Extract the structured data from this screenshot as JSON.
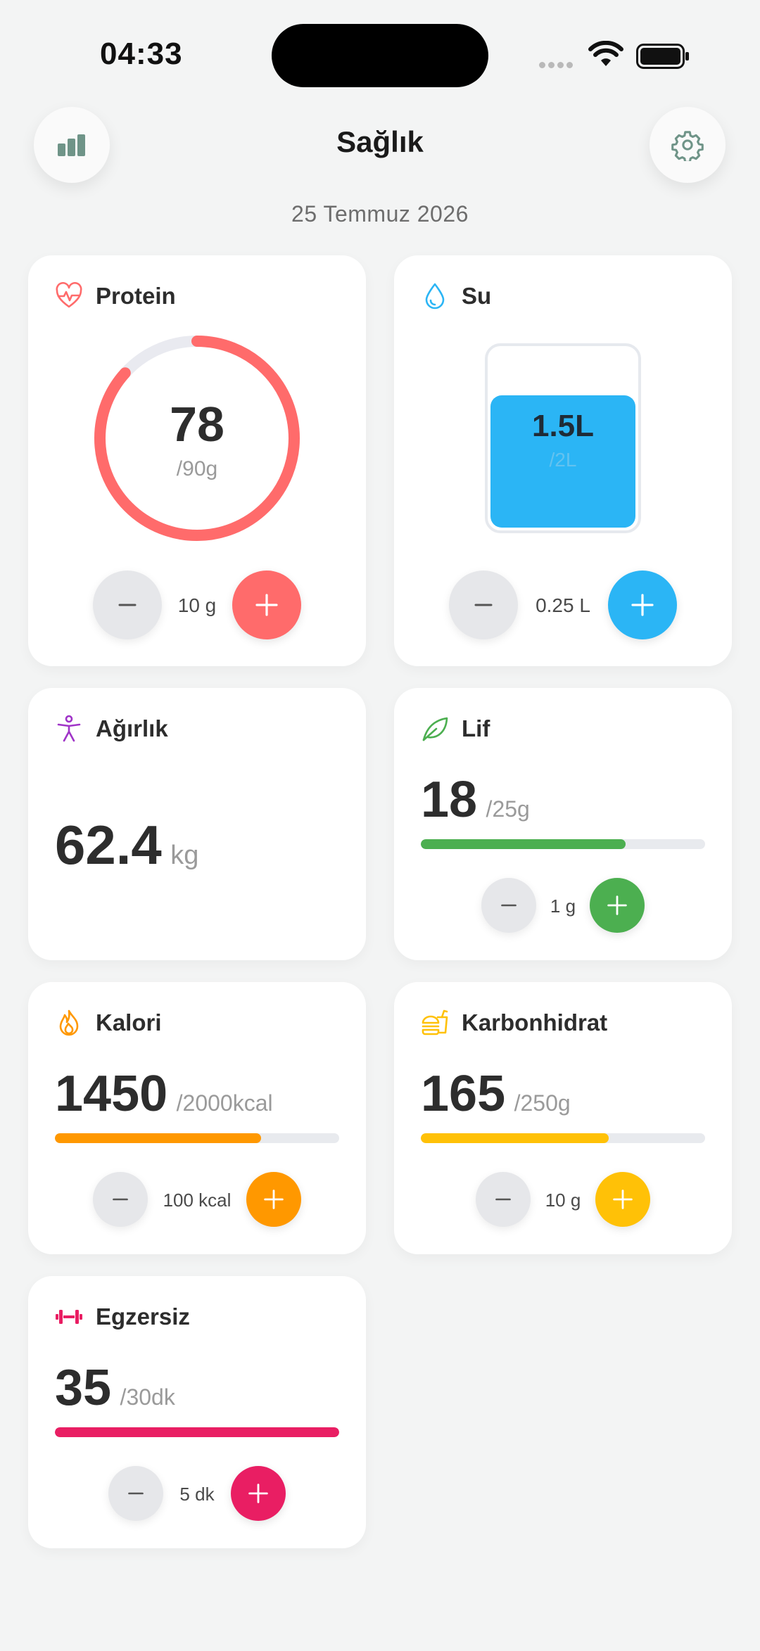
{
  "status": {
    "time": "04:33"
  },
  "header": {
    "title": "Sağlık",
    "date": "25 Temmuz 2026",
    "left_icon": "bar-chart-icon",
    "right_icon": "gear-icon"
  },
  "cards": {
    "protein": {
      "title": "Protein",
      "icon": "heart-pulse-icon",
      "value": "78",
      "goal": "/90g",
      "fraction": 0.867,
      "step": "10 g",
      "color": "#ff6b6b"
    },
    "water": {
      "title": "Su",
      "icon": "water-drop-icon",
      "value": "1.5L",
      "goal": "/2L",
      "fraction": 0.75,
      "step": "0.25 L",
      "color": "#2bb5f5"
    },
    "weight": {
      "title": "Ağırlık",
      "icon": "person-icon",
      "value": "62.4",
      "unit": "kg",
      "color": "#a034c8"
    },
    "fiber": {
      "title": "Lif",
      "icon": "leaf-icon",
      "value": "18",
      "goal": "/25g",
      "fraction": 0.72,
      "step": "1 g",
      "color": "#4caf50"
    },
    "calories": {
      "title": "Kalori",
      "icon": "flame-icon",
      "value": "1450",
      "goal": "/2000kcal",
      "fraction": 0.725,
      "step": "100 kcal",
      "color": "#ff9800"
    },
    "carbs": {
      "title": "Karbonhidrat",
      "icon": "fast-food-icon",
      "value": "165",
      "goal": "/250g",
      "fraction": 0.66,
      "step": "10 g",
      "color": "#ffc107"
    },
    "exercise": {
      "title": "Egzersiz",
      "icon": "dumbbell-icon",
      "value": "35",
      "goal": "/30dk",
      "fraction": 1.0,
      "step": "5 dk",
      "color": "#e91e63"
    }
  }
}
